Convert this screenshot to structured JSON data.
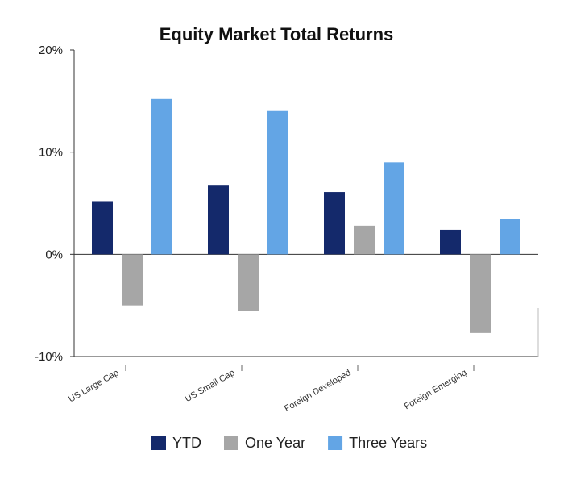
{
  "chart_data": {
    "type": "bar",
    "title": "Equity Market Total Returns",
    "xlabel": "",
    "ylabel": "",
    "categories": [
      "US Large Cap",
      "US Small Cap",
      "Foreign Developed",
      "Foreign Emerging"
    ],
    "series": [
      {
        "name": "YTD",
        "color": "#14296b",
        "values": [
          5.2,
          6.8,
          6.1,
          2.4
        ]
      },
      {
        "name": "One Year",
        "color": "#a6a6a6",
        "values": [
          -5.0,
          -5.5,
          2.8,
          -7.7
        ]
      },
      {
        "name": "Three Years",
        "color": "#63a5e5",
        "values": [
          15.2,
          14.1,
          9.0,
          3.5
        ]
      }
    ],
    "ylim": [
      -10,
      20
    ],
    "yticks": [
      20,
      10,
      0,
      -10
    ],
    "ytick_labels": [
      "20%",
      "10%",
      "0%",
      "-10%"
    ],
    "grid": false,
    "legend_position": "bottom"
  }
}
